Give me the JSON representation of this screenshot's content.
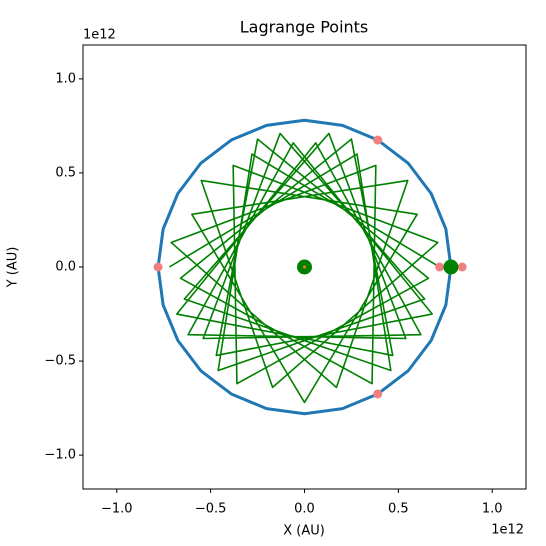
{
  "chart_data": {
    "type": "line",
    "title": "Lagrange Points",
    "xlabel": "X (AU)",
    "ylabel": "Y (AU)",
    "x_offset_text": "1e12",
    "y_offset_text": "1e12",
    "xlim": [
      -1.18,
      1.18
    ],
    "ylim": [
      -1.18,
      1.18
    ],
    "xticks": [
      {
        "value": -1,
        "label": "−1.0"
      },
      {
        "value": -0.5,
        "label": "−0.5"
      },
      {
        "value": 0,
        "label": "0.0"
      },
      {
        "value": 0.5,
        "label": "0.5"
      },
      {
        "value": 1,
        "label": "1.0"
      }
    ],
    "yticks": [
      {
        "value": -1,
        "label": "−1.0"
      },
      {
        "value": -0.5,
        "label": "−0.5"
      },
      {
        "value": 0,
        "label": "0.0"
      },
      {
        "value": 0.5,
        "label": "0.5"
      },
      {
        "value": 1,
        "label": "1.0"
      }
    ],
    "grid": false,
    "series": [
      {
        "color": "#1f77b4",
        "width": 3,
        "x": [
          0.78,
          0.753,
          0.675,
          0.552,
          0.39,
          0.202,
          0,
          -0.202,
          -0.39,
          -0.552,
          -0.675,
          -0.753,
          -0.78,
          -0.753,
          -0.675,
          -0.552,
          -0.39,
          -0.202,
          0,
          0.202,
          0.39,
          0.552,
          0.675,
          0.753,
          0.78
        ],
        "y": [
          0,
          0.202,
          0.39,
          0.552,
          0.675,
          0.753,
          0.78,
          0.753,
          0.675,
          0.552,
          0.39,
          0.202,
          0,
          -0.202,
          -0.39,
          -0.552,
          -0.675,
          -0.753,
          -0.78,
          -0.753,
          -0.675,
          -0.552,
          -0.39,
          -0.202,
          0
        ]
      },
      {
        "color": "green",
        "width": 1.6,
        "x": [
          0.72,
          -0.28,
          -0.46,
          0.64,
          -0.13,
          -0.54,
          0.62,
          0.06,
          -0.68,
          0.47,
          0.25,
          -0.66,
          0.36,
          0.38,
          -0.71,
          0.17,
          0.55,
          -0.6,
          0,
          0.6,
          -0.55,
          -0.17,
          0.71,
          -0.38,
          -0.36,
          0.66,
          -0.25,
          -0.47,
          0.68,
          -0.06,
          -0.62,
          0.54,
          0.13,
          -0.64,
          0.46,
          0.28,
          -0.72
        ],
        "y": [
          0,
          0.6,
          -0.55,
          -0.17,
          0.71,
          -0.38,
          -0.36,
          0.66,
          -0.25,
          -0.47,
          0.68,
          -0.06,
          -0.62,
          0.54,
          0.13,
          -0.64,
          0.46,
          0.28,
          -0.72,
          0.28,
          0.46,
          -0.64,
          0.13,
          0.54,
          -0.62,
          -0.06,
          0.68,
          -0.47,
          -0.25,
          0.66,
          -0.36,
          -0.38,
          0.71,
          -0.17,
          -0.55,
          0.6,
          0
        ]
      }
    ],
    "points": [
      {
        "color": "#f08080",
        "size": 4.5,
        "x": [
          0.72,
          0.84,
          -0.78,
          0.39,
          0.39
        ],
        "y": [
          0,
          0,
          0,
          0.675,
          -0.675
        ]
      },
      {
        "color": "green",
        "size": 7.5,
        "x": [
          0,
          0.78
        ],
        "y": [
          0,
          0
        ]
      },
      {
        "color": "#ff7f0e",
        "size": 1.5,
        "x": [
          0
        ],
        "y": [
          0
        ]
      }
    ]
  }
}
